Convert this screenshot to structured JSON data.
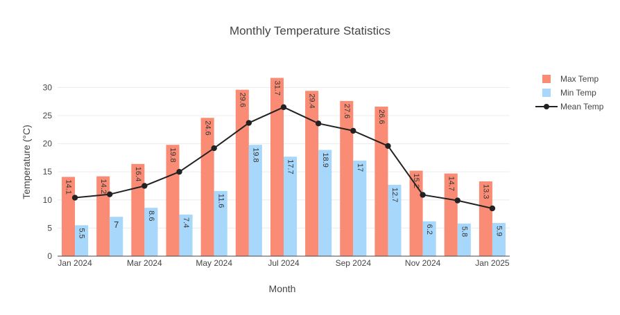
{
  "chart_data": {
    "type": "bar",
    "title": "Monthly Temperature Statistics",
    "xlabel": "Month",
    "ylabel": "Temperature (°C)",
    "ylim": [
      0,
      33
    ],
    "yticks": [
      0,
      5,
      10,
      15,
      20,
      25,
      30
    ],
    "grid": true,
    "legend_position": "top-right",
    "categories": [
      "2024-01",
      "2024-02",
      "2024-03",
      "2024-04",
      "2024-05",
      "2024-06",
      "2024-07",
      "2024-08",
      "2024-09",
      "2024-10",
      "2024-11",
      "2024-12",
      "2025-01"
    ],
    "xtick_labels": [
      {
        "index": 0,
        "label": "Jan 2024"
      },
      {
        "index": 2,
        "label": "Mar 2024"
      },
      {
        "index": 4,
        "label": "May 2024"
      },
      {
        "index": 6,
        "label": "Jul 2024"
      },
      {
        "index": 8,
        "label": "Sep 2024"
      },
      {
        "index": 10,
        "label": "Nov 2024"
      },
      {
        "index": 12,
        "label": "Jan 2025"
      }
    ],
    "series": [
      {
        "name": "Max Temp",
        "type": "bar",
        "color": "#fa8c76",
        "values": [
          14.1,
          14.2,
          16.4,
          19.8,
          24.6,
          29.6,
          31.7,
          29.4,
          27.6,
          26.6,
          15.2,
          14.7,
          13.3
        ],
        "labels": [
          "14.1",
          "14.2",
          "16.4",
          "19.8",
          "24.6",
          "29.6",
          "31.7",
          "29.4",
          "27.6",
          "26.6",
          "15.2",
          "14.7",
          "13.3"
        ]
      },
      {
        "name": "Min Temp",
        "type": "bar",
        "color": "#a7d8fb",
        "values": [
          5.5,
          7.0,
          8.6,
          7.4,
          11.6,
          19.8,
          17.7,
          18.9,
          17.0,
          12.7,
          6.2,
          5.8,
          5.9
        ],
        "labels": [
          "5.5",
          "7",
          "8.6",
          "7.4",
          "11.6",
          "19.8",
          "17.7",
          "18.9",
          "17",
          "12.7",
          "6.2",
          "5.8",
          "5.9"
        ]
      },
      {
        "name": "Mean Temp",
        "type": "line",
        "color": "#222222",
        "values": [
          10.4,
          11.0,
          12.5,
          15.0,
          19.2,
          23.7,
          26.5,
          23.6,
          22.3,
          19.6,
          10.9,
          9.9,
          8.5
        ]
      }
    ]
  }
}
